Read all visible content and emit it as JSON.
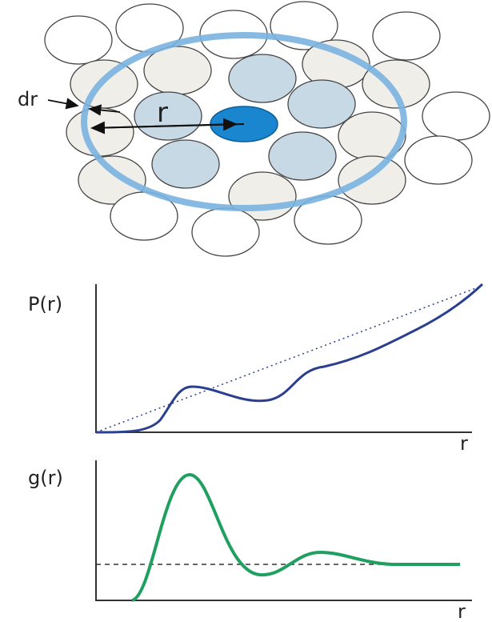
{
  "diagram": {
    "labels": {
      "dr": "dr",
      "r": "r"
    }
  },
  "plots": [
    {
      "ylabel": "P(r)",
      "xlabel": "r"
    },
    {
      "ylabel": "g(r)",
      "xlabel": "r"
    }
  ]
}
